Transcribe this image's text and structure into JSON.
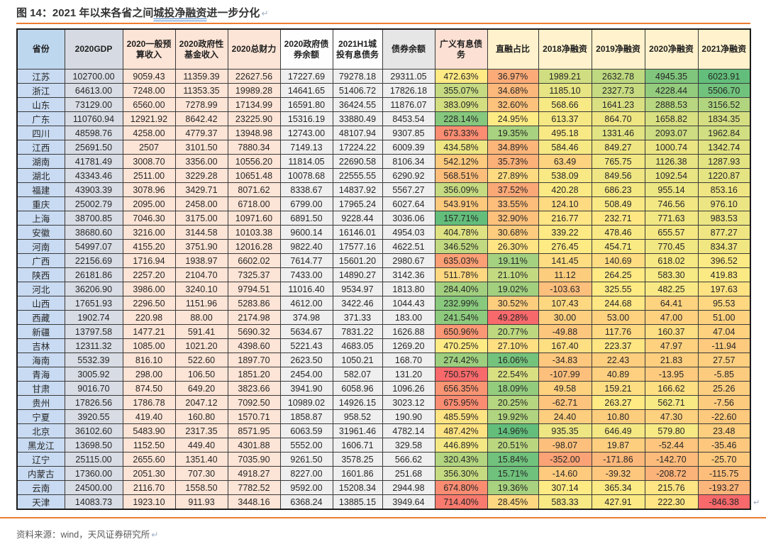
{
  "title": {
    "prefix": "图 14：",
    "segment_before": "2021 年以来各省之间",
    "segment_underlined": "城投净融资",
    "segment_after": "进一步分化",
    "return_mark": "↵"
  },
  "source": {
    "text": "资料来源：wind，天风证券研究所",
    "return_mark": "↵"
  },
  "colors": {
    "accent_rule": "#ED7D31",
    "scale_green": "#63BE7B",
    "scale_yellow": "#FFEB84",
    "scale_red": "#F8696B",
    "header_blue": "#BDD7EE",
    "header_peach": "#FCE4D6",
    "header_yellow": "#FFF2CC",
    "cell_province_blue": "#C9DBF2"
  },
  "chart_data": {
    "type": "table",
    "columns": [
      "省份",
      "2020GDP",
      "2020一般预算收入",
      "2020政府性基金收入",
      "2020总财力",
      "2020政府债券余额",
      "2021H1城投有息债务",
      "债券余额",
      "广义有息债务",
      "直融占比",
      "2018净融资",
      "2019净融资",
      "2020净融资",
      "2021净融资"
    ],
    "rows": [
      [
        "江苏",
        "102700.00",
        "9059.43",
        "11359.39",
        "22627.56",
        "17227.69",
        "79278.18",
        "29311.05",
        "472.63%",
        "36.97%",
        "1989.21",
        "2632.78",
        "4945.35",
        "6023.91"
      ],
      [
        "浙江",
        "64613.00",
        "7248.00",
        "11353.35",
        "19989.28",
        "14641.65",
        "51406.72",
        "17826.18",
        "355.07%",
        "34.68%",
        "1185.10",
        "2327.73",
        "4228.44",
        "5506.70"
      ],
      [
        "山东",
        "73129.00",
        "6560.00",
        "7278.99",
        "17134.99",
        "16591.80",
        "36424.55",
        "11876.07",
        "383.09%",
        "32.60%",
        "568.66",
        "1641.23",
        "2888.53",
        "3156.52"
      ],
      [
        "广东",
        "110760.94",
        "12921.92",
        "8642.42",
        "23225.90",
        "15316.19",
        "33880.49",
        "8453.54",
        "228.14%",
        "24.95%",
        "613.37",
        "864.70",
        "1658.82",
        "1834.35"
      ],
      [
        "四川",
        "48598.76",
        "4258.00",
        "4779.37",
        "13948.98",
        "12743.00",
        "48107.94",
        "9307.85",
        "673.33%",
        "19.35%",
        "495.18",
        "1331.46",
        "2093.07",
        "1962.84"
      ],
      [
        "江西",
        "25691.50",
        "2507",
        "3101.50",
        "7880.34",
        "7149.13",
        "17224.22",
        "6009.39",
        "434.58%",
        "34.89%",
        "584.46",
        "849.27",
        "1000.74",
        "1342.74"
      ],
      [
        "湖南",
        "41781.49",
        "3008.70",
        "3356.00",
        "10556.20",
        "11814.05",
        "22690.58",
        "8106.34",
        "542.12%",
        "35.73%",
        "63.49",
        "765.75",
        "1126.38",
        "1287.93"
      ],
      [
        "湖北",
        "43343.46",
        "2511.00",
        "3229.28",
        "10651.48",
        "10078.68",
        "22555.55",
        "6290.92",
        "568.51%",
        "27.89%",
        "538.09",
        "849.56",
        "1092.54",
        "1220.87"
      ],
      [
        "福建",
        "43903.39",
        "3078.96",
        "3429.71",
        "8071.62",
        "8338.67",
        "14837.92",
        "5567.27",
        "356.09%",
        "37.52%",
        "420.28",
        "686.23",
        "955.14",
        "853.16"
      ],
      [
        "重庆",
        "25002.79",
        "2095.00",
        "2458.00",
        "6718.00",
        "6799.00",
        "17965.24",
        "6027.64",
        "543.91%",
        "33.55%",
        "124.10",
        "508.49",
        "746.56",
        "976.10"
      ],
      [
        "上海",
        "38700.85",
        "7046.30",
        "3175.00",
        "10971.60",
        "6891.50",
        "9228.44",
        "3036.06",
        "157.71%",
        "32.90%",
        "216.77",
        "232.71",
        "771.63",
        "983.53"
      ],
      [
        "安徽",
        "38680.60",
        "3216.00",
        "3144.58",
        "10103.38",
        "9600.14",
        "16146.01",
        "4954.03",
        "404.78%",
        "30.68%",
        "339.22",
        "478.46",
        "655.57",
        "877.27"
      ],
      [
        "河南",
        "54997.07",
        "4155.20",
        "3751.90",
        "12016.28",
        "9822.40",
        "17577.16",
        "4622.51",
        "346.52%",
        "26.30%",
        "276.45",
        "454.71",
        "770.45",
        "834.37"
      ],
      [
        "广西",
        "22156.69",
        "1716.94",
        "1938.97",
        "6602.02",
        "7614.77",
        "15601.20",
        "2980.67",
        "635.03%",
        "19.11%",
        "141.45",
        "140.69",
        "618.02",
        "396.52"
      ],
      [
        "陕西",
        "26181.86",
        "2257.20",
        "2104.70",
        "7325.37",
        "7433.00",
        "14890.27",
        "3142.36",
        "511.78%",
        "21.10%",
        "11.12",
        "264.25",
        "583.30",
        "419.83"
      ],
      [
        "河北",
        "36206.90",
        "3986.00",
        "3240.10",
        "9794.51",
        "11016.40",
        "9534.97",
        "1813.80",
        "284.40%",
        "19.02%",
        "-103.63",
        "325.55",
        "482.25",
        "197.63"
      ],
      [
        "山西",
        "17651.93",
        "2296.50",
        "1151.96",
        "5283.86",
        "4612.00",
        "3422.46",
        "1044.43",
        "232.99%",
        "30.52%",
        "107.43",
        "244.68",
        "64.41",
        "95.53"
      ],
      [
        "西藏",
        "1902.74",
        "220.98",
        "88.00",
        "2174.98",
        "374.98",
        "371.33",
        "183.00",
        "241.54%",
        "49.28%",
        "30.00",
        "53.00",
        "47.00",
        "51.00"
      ],
      [
        "新疆",
        "13797.58",
        "1477.21",
        "591.41",
        "5690.32",
        "5634.67",
        "7831.22",
        "1626.88",
        "650.96%",
        "20.77%",
        "-49.88",
        "117.76",
        "160.37",
        "47.04"
      ],
      [
        "吉林",
        "12311.32",
        "1085.00",
        "1021.20",
        "4398.60",
        "5221.43",
        "4683.05",
        "1269.20",
        "470.25%",
        "27.10%",
        "167.40",
        "223.37",
        "47.97",
        "-11.94"
      ],
      [
        "海南",
        "5532.39",
        "816.10",
        "522.60",
        "1897.70",
        "2623.50",
        "1050.21",
        "168.70",
        "274.42%",
        "16.06%",
        "-34.83",
        "22.43",
        "21.83",
        "27.57"
      ],
      [
        "青海",
        "3005.92",
        "298.00",
        "106.50",
        "1851.20",
        "2454.00",
        "582.07",
        "131.20",
        "750.57%",
        "22.54%",
        "-107.99",
        "40.89",
        "-13.95",
        "-5.85"
      ],
      [
        "甘肃",
        "9016.70",
        "874.50",
        "649.20",
        "3823.66",
        "3941.90",
        "6058.96",
        "1096.26",
        "656.35%",
        "18.09%",
        "49.58",
        "159.21",
        "166.62",
        "25.26"
      ],
      [
        "贵州",
        "17826.56",
        "1786.78",
        "2047.12",
        "7092.50",
        "10989.02",
        "14926.15",
        "3023.12",
        "675.95%",
        "20.25%",
        "-62.71",
        "263.27",
        "562.71",
        "-7.56"
      ],
      [
        "宁夏",
        "3920.55",
        "419.40",
        "160.80",
        "1570.71",
        "1858.87",
        "958.52",
        "190.90",
        "485.59%",
        "19.92%",
        "24.40",
        "10.80",
        "47.30",
        "-22.60"
      ],
      [
        "北京",
        "36102.60",
        "5483.90",
        "2317.35",
        "8571.95",
        "6063.59",
        "31961.46",
        "4782.14",
        "487.42%",
        "14.96%",
        "935.35",
        "646.49",
        "579.80",
        "23.48"
      ],
      [
        "黑龙江",
        "13698.50",
        "1152.50",
        "449.40",
        "4301.88",
        "5552.00",
        "1606.71",
        "329.58",
        "446.89%",
        "20.51%",
        "-98.07",
        "19.87",
        "-52.44",
        "-35.46"
      ],
      [
        "辽宁",
        "25115.00",
        "2655.60",
        "1351.40",
        "7035.90",
        "9261.50",
        "3578.25",
        "566.62",
        "320.43%",
        "15.84%",
        "-352.00",
        "-171.86",
        "-142.70",
        "-25.70"
      ],
      [
        "内蒙古",
        "17360.00",
        "2051.30",
        "707.30",
        "4918.27",
        "8227.00",
        "1601.86",
        "251.68",
        "356.30%",
        "15.71%",
        "-14.60",
        "-39.32",
        "-208.72",
        "-115.75"
      ],
      [
        "云南",
        "24500.00",
        "2116.70",
        "1558.50",
        "7782.52",
        "9592.00",
        "15208.34",
        "2944.98",
        "674.80%",
        "19.36%",
        "307.14",
        "365.34",
        "215.76",
        "-193.27"
      ],
      [
        "天津",
        "14083.73",
        "1923.10",
        "911.93",
        "3448.16",
        "6368.24",
        "13885.15",
        "3949.64",
        "714.40%",
        "28.45%",
        "583.33",
        "427.91",
        "222.30",
        "-846.38"
      ]
    ]
  }
}
